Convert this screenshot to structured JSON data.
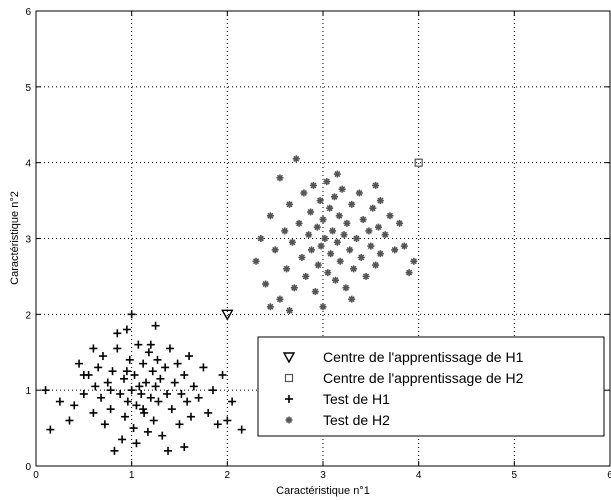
{
  "chart_data": {
    "type": "scatter",
    "xlabel": "Caractéristique n°1",
    "ylabel": "Caractéristique n°2",
    "xlim": [
      0,
      6
    ],
    "ylim": [
      0,
      6
    ],
    "xticks": [
      "0",
      "1",
      "2",
      "3",
      "4",
      "5",
      "6"
    ],
    "yticks": [
      "0",
      "1",
      "2",
      "3",
      "4",
      "5",
      "6"
    ],
    "grid": true,
    "legend_position": "bottom-right",
    "colors": {
      "h1": "#000000",
      "h2": "#555555"
    },
    "series": [
      {
        "name": "Centre de l'apprentissage de H1",
        "marker": "triangle-down",
        "color": "#000000",
        "points": [
          [
            2.0,
            2.0
          ]
        ]
      },
      {
        "name": "Centre de l'apprentissage de H2",
        "marker": "square",
        "color": "#555555",
        "points": [
          [
            4.0,
            4.0
          ]
        ]
      },
      {
        "name": "Test de H1",
        "marker": "plus",
        "color": "#000000",
        "points": [
          [
            0.1,
            1.0
          ],
          [
            0.15,
            0.48
          ],
          [
            0.25,
            0.85
          ],
          [
            0.35,
            0.6
          ],
          [
            0.4,
            0.8
          ],
          [
            0.45,
            1.35
          ],
          [
            0.5,
            0.95
          ],
          [
            0.55,
            1.2
          ],
          [
            0.6,
            0.7
          ],
          [
            0.62,
            1.05
          ],
          [
            0.65,
            1.3
          ],
          [
            0.68,
            0.9
          ],
          [
            0.7,
            1.45
          ],
          [
            0.72,
            0.55
          ],
          [
            0.75,
            1.1
          ],
          [
            0.78,
            0.75
          ],
          [
            0.8,
            1.25
          ],
          [
            0.82,
            0.2
          ],
          [
            0.85,
            1.55
          ],
          [
            0.88,
            0.95
          ],
          [
            0.9,
            0.35
          ],
          [
            0.92,
            1.15
          ],
          [
            0.93,
            0.65
          ],
          [
            0.95,
            1.8
          ],
          [
            0.96,
            0.85
          ],
          [
            0.98,
            1.4
          ],
          [
            1.0,
            1.0
          ],
          [
            1.0,
            2.0
          ],
          [
            1.02,
            0.5
          ],
          [
            1.03,
            1.2
          ],
          [
            1.05,
            0.8
          ],
          [
            1.07,
            1.6
          ],
          [
            1.08,
            1.05
          ],
          [
            1.1,
            0.95
          ],
          [
            1.12,
            1.35
          ],
          [
            1.13,
            0.7
          ],
          [
            1.15,
            1.1
          ],
          [
            1.17,
            0.45
          ],
          [
            1.18,
            1.5
          ],
          [
            1.2,
            0.9
          ],
          [
            1.22,
            1.25
          ],
          [
            1.23,
            0.6
          ],
          [
            1.25,
            1.05
          ],
          [
            1.27,
            1.4
          ],
          [
            1.28,
            0.85
          ],
          [
            1.3,
            1.15
          ],
          [
            1.32,
            0.4
          ],
          [
            1.35,
            1.3
          ],
          [
            1.37,
            0.95
          ],
          [
            1.4,
            1.55
          ],
          [
            1.42,
            0.75
          ],
          [
            1.45,
            1.1
          ],
          [
            1.48,
            1.35
          ],
          [
            1.5,
            0.55
          ],
          [
            1.52,
            0.95
          ],
          [
            1.55,
            1.2
          ],
          [
            1.58,
            0.85
          ],
          [
            1.6,
            1.45
          ],
          [
            1.62,
            0.65
          ],
          [
            1.65,
            1.05
          ],
          [
            1.7,
            0.9
          ],
          [
            1.75,
            1.3
          ],
          [
            1.8,
            0.7
          ],
          [
            1.85,
            1.0
          ],
          [
            1.9,
            0.55
          ],
          [
            1.95,
            1.2
          ],
          [
            2.0,
            0.6
          ],
          [
            2.05,
            0.85
          ],
          [
            2.15,
            0.48
          ],
          [
            1.55,
            0.25
          ],
          [
            0.85,
            1.75
          ],
          [
            1.25,
            1.85
          ],
          [
            0.6,
            1.55
          ],
          [
            1.05,
            0.3
          ],
          [
            1.38,
            0.2
          ],
          [
            0.78,
            1.0
          ],
          [
            1.12,
            0.75
          ],
          [
            0.95,
            1.25
          ],
          [
            1.2,
            1.6
          ],
          [
            0.5,
            1.2
          ]
        ]
      },
      {
        "name": "Test de H2",
        "marker": "asterisk",
        "color": "#555555",
        "points": [
          [
            2.3,
            2.7
          ],
          [
            2.35,
            3.0
          ],
          [
            2.4,
            2.4
          ],
          [
            2.45,
            3.3
          ],
          [
            2.5,
            2.85
          ],
          [
            2.55,
            2.2
          ],
          [
            2.55,
            3.8
          ],
          [
            2.6,
            3.1
          ],
          [
            2.62,
            2.6
          ],
          [
            2.65,
            3.45
          ],
          [
            2.68,
            2.95
          ],
          [
            2.7,
            2.35
          ],
          [
            2.72,
            4.05
          ],
          [
            2.75,
            3.2
          ],
          [
            2.78,
            2.75
          ],
          [
            2.8,
            3.6
          ],
          [
            2.82,
            2.5
          ],
          [
            2.85,
            3.05
          ],
          [
            2.87,
            3.35
          ],
          [
            2.88,
            2.85
          ],
          [
            2.9,
            3.7
          ],
          [
            2.92,
            2.3
          ],
          [
            2.94,
            3.15
          ],
          [
            2.95,
            2.65
          ],
          [
            2.97,
            3.5
          ],
          [
            2.98,
            2.9
          ],
          [
            3.0,
            3.25
          ],
          [
            3.0,
            2.1
          ],
          [
            3.02,
            3.0
          ],
          [
            3.04,
            3.75
          ],
          [
            3.05,
            2.55
          ],
          [
            3.07,
            3.4
          ],
          [
            3.08,
            2.8
          ],
          [
            3.1,
            3.1
          ],
          [
            3.12,
            3.55
          ],
          [
            3.13,
            2.45
          ],
          [
            3.15,
            2.95
          ],
          [
            3.17,
            3.3
          ],
          [
            3.18,
            2.7
          ],
          [
            3.2,
            3.65
          ],
          [
            3.22,
            3.05
          ],
          [
            3.24,
            2.35
          ],
          [
            3.25,
            3.2
          ],
          [
            3.28,
            2.85
          ],
          [
            3.3,
            3.45
          ],
          [
            3.32,
            2.6
          ],
          [
            3.35,
            3.0
          ],
          [
            3.38,
            3.6
          ],
          [
            3.4,
            2.75
          ],
          [
            3.42,
            3.25
          ],
          [
            3.45,
            2.5
          ],
          [
            3.48,
            3.1
          ],
          [
            3.5,
            2.9
          ],
          [
            3.52,
            3.4
          ],
          [
            3.55,
            2.65
          ],
          [
            3.58,
            3.15
          ],
          [
            3.6,
            2.8
          ],
          [
            3.65,
            3.05
          ],
          [
            3.7,
            3.3
          ],
          [
            3.75,
            2.85
          ],
          [
            3.8,
            3.2
          ],
          [
            3.85,
            2.9
          ],
          [
            3.9,
            2.55
          ],
          [
            3.95,
            2.7
          ],
          [
            2.45,
            2.1
          ],
          [
            3.55,
            3.7
          ],
          [
            3.3,
            2.2
          ],
          [
            2.65,
            2.05
          ],
          [
            3.15,
            3.85
          ],
          [
            3.6,
            3.5
          ]
        ]
      }
    ]
  }
}
